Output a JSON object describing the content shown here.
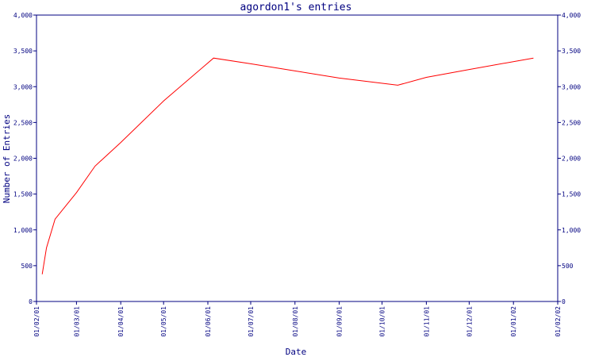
{
  "chart_data": {
    "type": "line",
    "title": "agordon1's entries",
    "xlabel": "Date",
    "ylabel": "Number of Entries",
    "x_ticks": [
      "01/02/01",
      "01/03/01",
      "01/04/01",
      "01/05/01",
      "01/06/01",
      "01/07/01",
      "01/08/01",
      "01/09/01",
      "01/10/01",
      "01/11/01",
      "01/12/01",
      "01/01/02",
      "01/02/02"
    ],
    "y_ticks": [
      "0",
      "500",
      "1,000",
      "1,500",
      "2,000",
      "2,500",
      "3,000",
      "3,500",
      "4,000"
    ],
    "ylim": [
      0,
      4000
    ],
    "xlim": [
      "2001-02-01",
      "2002-02-01"
    ],
    "grid": false,
    "legend": "none",
    "colors": {
      "axis": "#000080",
      "series": "#ff0000",
      "background": "#ffffff"
    },
    "series": [
      {
        "x": [
          "2001-02-05",
          "2001-02-08",
          "2001-02-14",
          "2001-03-01",
          "2001-03-14",
          "2001-04-01",
          "2001-05-01",
          "2001-06-05",
          "2001-07-01",
          "2001-08-01",
          "2001-09-01",
          "2001-10-12",
          "2001-11-01",
          "2001-12-01",
          "2002-01-15"
        ],
        "y": [
          380,
          750,
          1150,
          1520,
          1890,
          2220,
          2800,
          3400,
          3320,
          3220,
          3120,
          3020,
          3130,
          3240,
          3400
        ]
      }
    ]
  }
}
